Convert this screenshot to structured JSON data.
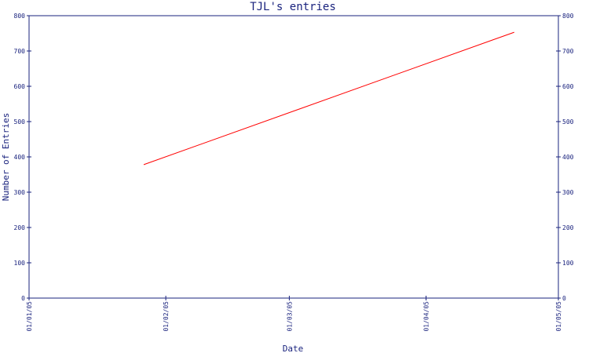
{
  "chart_data": {
    "type": "line",
    "title": "TJL's entries",
    "xlabel": "Date",
    "ylabel": "Number of Entries",
    "x_tick_labels": [
      "01/01/05",
      "01/02/05",
      "01/03/05",
      "01/04/05",
      "01/05/05"
    ],
    "x_tick_dates": [
      "2005-01-01",
      "2005-02-01",
      "2005-03-01",
      "2005-04-01",
      "2005-05-01"
    ],
    "y_tick_labels": [
      "0",
      "100",
      "200",
      "300",
      "400",
      "500",
      "600",
      "700",
      "800"
    ],
    "y_tick_values": [
      0,
      100,
      200,
      300,
      400,
      500,
      600,
      700,
      800
    ],
    "xlim": [
      "2005-01-01",
      "2005-05-01"
    ],
    "ylim": [
      0,
      800
    ],
    "grid": false,
    "legend": false,
    "y_axis_mirrored_right": true,
    "series": [
      {
        "color": "#ff0000",
        "points": [
          {
            "x": "2005-01-27",
            "y": 378
          },
          {
            "x": "2005-04-21",
            "y": 753
          }
        ]
      }
    ],
    "colors": {
      "axis": "#1a237e",
      "series": "#ff0000",
      "background": "#ffffff"
    }
  }
}
